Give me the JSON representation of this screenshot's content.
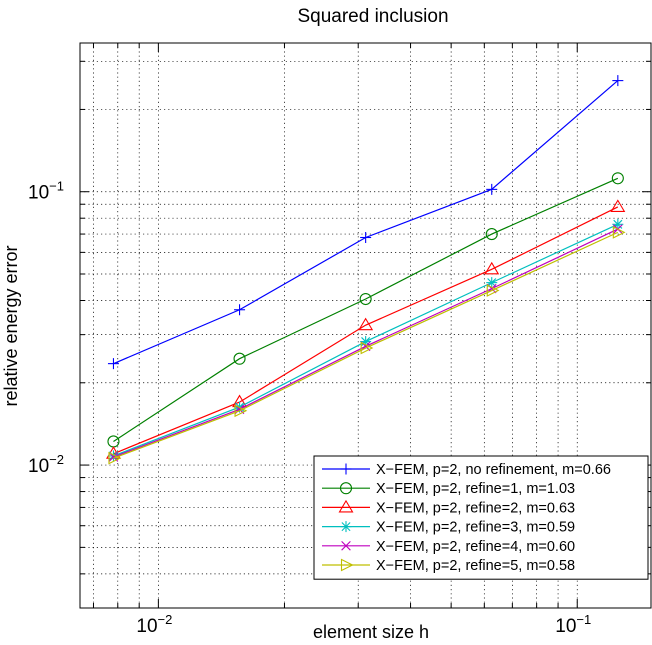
{
  "chart_data": {
    "type": "line",
    "title": "Squared inclusion",
    "xlabel": "element size h",
    "ylabel": "relative energy error",
    "xscale": "log",
    "yscale": "log",
    "xlim": [
      0.0065,
      0.15
    ],
    "ylim": [
      0.003,
      0.35
    ],
    "grid": true,
    "legend_position": "bottom-right",
    "x_ticks": [
      {
        "base": "10",
        "exp": "−2",
        "value": 0.01
      },
      {
        "base": "10",
        "exp": "−1",
        "value": 0.1
      }
    ],
    "y_ticks": [
      {
        "base": "10",
        "exp": "−2",
        "value": 0.01
      },
      {
        "base": "10",
        "exp": "−1",
        "value": 0.1
      }
    ],
    "x": [
      0.0078125,
      0.015625,
      0.03125,
      0.0625,
      0.125
    ],
    "series": [
      {
        "name": "X−FEM, p=2, no refinement, m=0.66",
        "color": "#0000ff",
        "marker": "plus",
        "values": [
          0.0235,
          0.037,
          0.068,
          0.102,
          0.255
        ]
      },
      {
        "name": "X−FEM, p=2, refine=1, m=1.03",
        "color": "#008000",
        "marker": "circle",
        "values": [
          0.0122,
          0.0245,
          0.0405,
          0.07,
          0.112
        ]
      },
      {
        "name": "X−FEM, p=2, refine=2, m=0.63",
        "color": "#ff0000",
        "marker": "triangle-up",
        "values": [
          0.011,
          0.017,
          0.0325,
          0.052,
          0.088
        ]
      },
      {
        "name": "X−FEM, p=2, refine=3, m=0.59",
        "color": "#00bfbf",
        "marker": "asterisk",
        "values": [
          0.0108,
          0.0163,
          0.0283,
          0.0465,
          0.076
        ]
      },
      {
        "name": "X−FEM, p=2, refine=4, m=0.60",
        "color": "#bf00bf",
        "marker": "x",
        "values": [
          0.0107,
          0.016,
          0.0272,
          0.0442,
          0.073
        ]
      },
      {
        "name": "X−FEM, p=2, refine=5, m=0.58",
        "color": "#bfbf00",
        "marker": "triangle-right",
        "values": [
          0.0106,
          0.0158,
          0.0268,
          0.0435,
          0.071
        ]
      }
    ]
  }
}
